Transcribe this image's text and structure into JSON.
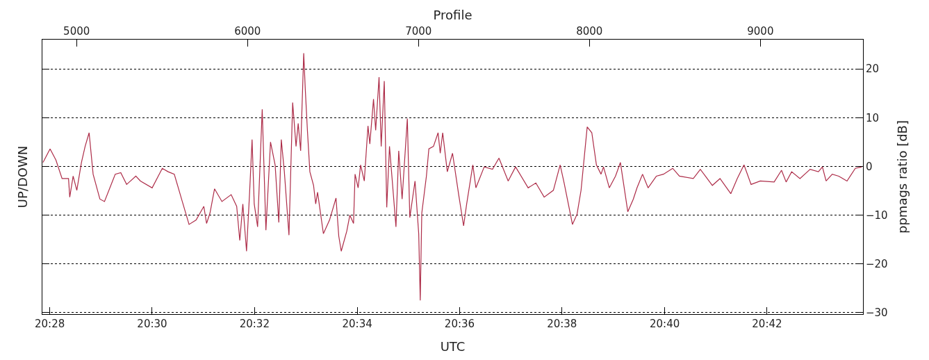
{
  "chart_data": {
    "type": "line",
    "xlabel": "UTC",
    "x2label": "Profile",
    "ylabel": "UP/DOWN",
    "y2label": "ppmags ratio [dB]",
    "xlim": [
      20.4643,
      20.7312
    ],
    "xticks": [
      {
        "value": 20.4667,
        "label": "20:28"
      },
      {
        "value": 20.5,
        "label": "20:30"
      },
      {
        "value": 20.5333,
        "label": "20:32"
      },
      {
        "value": 20.5667,
        "label": "20:34"
      },
      {
        "value": 20.6,
        "label": "20:36"
      },
      {
        "value": 20.6333,
        "label": "20:38"
      },
      {
        "value": 20.6667,
        "label": "20:40"
      },
      {
        "value": 20.7,
        "label": "20:42"
      }
    ],
    "x2lim": [
      4800,
      9600
    ],
    "x2ticks": [
      5000,
      6000,
      7000,
      8000,
      9000
    ],
    "y2lim": [
      -30.3,
      26
    ],
    "y2ticks": [
      -30,
      -20,
      -10,
      0,
      10,
      20
    ],
    "grid": "y2",
    "tick_labels": [
      "x",
      "x2",
      "y2"
    ],
    "marker": "none",
    "line_style": "solid",
    "series": [
      {
        "color": "#ad2c48",
        "axis": "y2",
        "x": [
          20.4645,
          20.4668,
          20.4687,
          20.4707,
          20.4728,
          20.4732,
          20.4743,
          20.4755,
          20.477,
          20.4782,
          20.4795,
          20.4808,
          20.483,
          20.4845,
          20.488,
          20.4898,
          20.4917,
          20.4947,
          20.4962,
          20.5,
          20.5033,
          20.5052,
          20.5072,
          20.5098,
          20.512,
          20.5143,
          20.5168,
          20.5177,
          20.5188,
          20.5203,
          20.5227,
          20.5257,
          20.5275,
          20.5285,
          20.5295,
          20.5307,
          20.5317,
          20.5325,
          20.5332,
          20.5343,
          20.5358,
          20.537,
          20.5385,
          20.54,
          20.5412,
          20.542,
          20.543,
          20.5445,
          20.5457,
          20.5468,
          20.5475,
          20.5483,
          20.5493,
          20.5498,
          20.5505,
          20.5513,
          20.5525,
          20.5532,
          20.5538,
          20.5557,
          20.5577,
          20.5598,
          20.5607,
          20.5615,
          20.5633,
          20.5643,
          20.5655,
          20.566,
          20.567,
          20.5678,
          20.569,
          20.5702,
          20.5708,
          20.572,
          20.5727,
          20.5738,
          20.5745,
          20.5755,
          20.5763,
          20.5772,
          20.5793,
          20.5802,
          20.5813,
          20.583,
          20.5838,
          20.5855,
          20.5867,
          20.5872,
          20.5877,
          20.5892,
          20.59,
          20.5915,
          20.593,
          20.5937,
          20.5945,
          20.596,
          20.5977,
          20.5997,
          20.6013,
          20.6023,
          20.6043,
          20.6053,
          20.608,
          20.6107,
          20.6128,
          20.6158,
          20.6182,
          20.6223,
          20.6248,
          20.6275,
          20.6305,
          20.6327,
          20.634,
          20.6367,
          20.6382,
          20.6395,
          20.6415,
          20.643,
          20.6445,
          20.646,
          20.6468,
          20.6487,
          20.6507,
          20.6523,
          20.6532,
          20.6547,
          20.6565,
          20.6577,
          20.6595,
          20.6613,
          20.664,
          20.6663,
          20.6693,
          20.6715,
          20.676,
          20.6783,
          20.6822,
          20.6847,
          20.6882,
          20.6903,
          20.6925,
          20.6948,
          20.6978,
          20.7023,
          20.7047,
          20.7062,
          20.708,
          20.7107,
          20.714,
          20.7167,
          20.718,
          20.7192,
          20.7212,
          20.7233,
          20.726,
          20.7287,
          20.7308
        ],
        "values": [
          0.8,
          3.6,
          1.3,
          -2.5,
          -2.5,
          -6.3,
          -2.0,
          -4.9,
          0.8,
          4.1,
          6.9,
          -1.6,
          -6.7,
          -7.2,
          -1.6,
          -1.3,
          -3.7,
          -2.0,
          -3.0,
          -4.4,
          -0.4,
          -1.1,
          -1.6,
          -7.2,
          -11.9,
          -11.0,
          -8.2,
          -11.7,
          -9.6,
          -4.6,
          -7.2,
          -5.8,
          -8.2,
          -15.2,
          -7.7,
          -17.4,
          -5.3,
          5.5,
          -7.7,
          -12.4,
          11.7,
          -13.1,
          5.0,
          0.3,
          -11.5,
          5.5,
          -1.1,
          -14.1,
          13.1,
          4.1,
          8.8,
          3.2,
          23.2,
          15.9,
          7.4,
          -1.1,
          -3.9,
          -7.7,
          -5.3,
          -13.8,
          -11.0,
          -6.5,
          -14.3,
          -17.4,
          -13.3,
          -10.0,
          -11.7,
          -1.6,
          -4.4,
          0.3,
          -3.0,
          8.3,
          4.6,
          13.8,
          7.4,
          18.3,
          4.1,
          17.5,
          -8.4,
          4.1,
          -12.4,
          3.2,
          -6.7,
          9.8,
          -10.5,
          -3.0,
          -13.8,
          -27.5,
          -9.6,
          -2.0,
          3.6,
          4.1,
          6.9,
          2.7,
          6.9,
          -1.1,
          2.7,
          -5.8,
          -12.2,
          -7.7,
          0.3,
          -4.4,
          -0.1,
          -0.6,
          1.7,
          -3.0,
          -0.1,
          -4.4,
          -3.4,
          -6.3,
          -4.9,
          0.3,
          -3.4,
          -11.9,
          -9.8,
          -4.9,
          8.1,
          6.9,
          0.3,
          -1.6,
          -0.1,
          -4.4,
          -2.0,
          0.8,
          -3.0,
          -9.3,
          -6.7,
          -4.4,
          -1.6,
          -4.4,
          -2.0,
          -1.6,
          -0.4,
          -2.0,
          -2.5,
          -0.6,
          -3.9,
          -2.5,
          -5.6,
          -2.5,
          0.3,
          -3.7,
          -3.0,
          -3.2,
          -0.8,
          -3.2,
          -1.1,
          -2.5,
          -0.6,
          -1.1,
          -0.1,
          -3.0,
          -1.6,
          -2.0,
          -3.0,
          -0.4,
          -0.1
        ]
      }
    ]
  }
}
